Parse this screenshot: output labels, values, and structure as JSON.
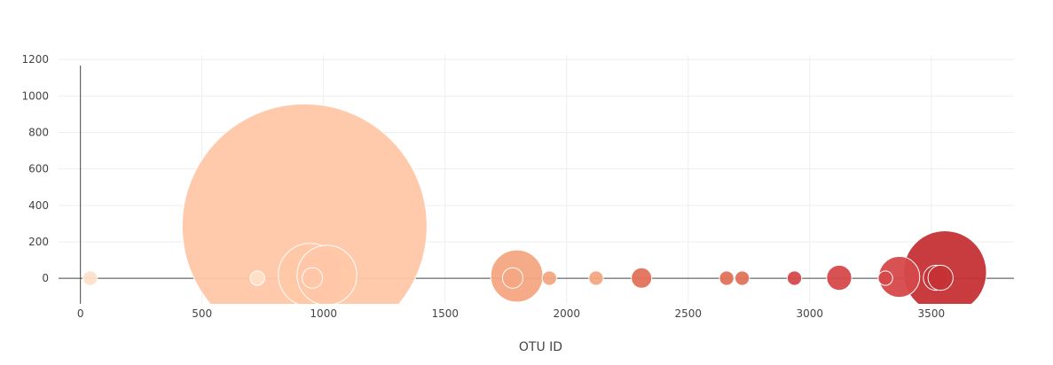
{
  "chart_data": {
    "type": "scatter",
    "mode": "markers (bubble)",
    "title": "",
    "xlabel": "OTU ID",
    "ylabel": "",
    "xlim": [
      -90,
      3840
    ],
    "ylim": [
      -140,
      1225
    ],
    "x_ticks": [
      0,
      500,
      1000,
      1500,
      2000,
      2500,
      3000,
      3500
    ],
    "y_ticks": [
      0,
      200,
      400,
      600,
      800,
      1000,
      1200
    ],
    "grid": true,
    "legend": "none",
    "marker_color_scale": [
      "#ffe0c8",
      "#ffc7a6",
      "#f4a582",
      "#e1725a",
      "#d6494b",
      "#c53135"
    ],
    "points": [
      {
        "x": 40,
        "y": 1,
        "size": 1,
        "color": "#ffe0c8"
      },
      {
        "x": 728,
        "y": 1,
        "size": 1,
        "color": "#ffe0c8"
      },
      {
        "x": 922,
        "y": 286,
        "size": 286,
        "color": "#ffc7a6"
      },
      {
        "x": 944,
        "y": 19,
        "size": 19,
        "color": "#ffc7a6"
      },
      {
        "x": 954,
        "y": 2,
        "size": 2,
        "color": "#ffc7a6"
      },
      {
        "x": 1014,
        "y": 17,
        "size": 17,
        "color": "#ffc7a6"
      },
      {
        "x": 1778,
        "y": 2,
        "size": 2,
        "color": "#f4a582"
      },
      {
        "x": 1795,
        "y": 13,
        "size": 13,
        "color": "#f4a582"
      },
      {
        "x": 1929,
        "y": 1,
        "size": 1,
        "color": "#f4a582"
      },
      {
        "x": 2121,
        "y": 1,
        "size": 1,
        "color": "#f4a582"
      },
      {
        "x": 2308,
        "y": 2,
        "size": 2,
        "color": "#e1725a"
      },
      {
        "x": 2658,
        "y": 1,
        "size": 1,
        "color": "#e1725a"
      },
      {
        "x": 2722,
        "y": 1,
        "size": 1,
        "color": "#e1725a"
      },
      {
        "x": 2937,
        "y": 1,
        "size": 1,
        "color": "#d6494b"
      },
      {
        "x": 3121,
        "y": 3,
        "size": 3,
        "color": "#d6494b"
      },
      {
        "x": 3311,
        "y": 1,
        "size": 1,
        "color": "#d6494b"
      },
      {
        "x": 3368,
        "y": 8,
        "size": 8,
        "color": "#d6494b"
      },
      {
        "x": 3519,
        "y": 3,
        "size": 3,
        "color": "#c53135"
      },
      {
        "x": 3538,
        "y": 3,
        "size": 3,
        "color": "#c53135"
      },
      {
        "x": 3556,
        "y": 33,
        "size": 33,
        "color": "#c53135"
      }
    ]
  }
}
